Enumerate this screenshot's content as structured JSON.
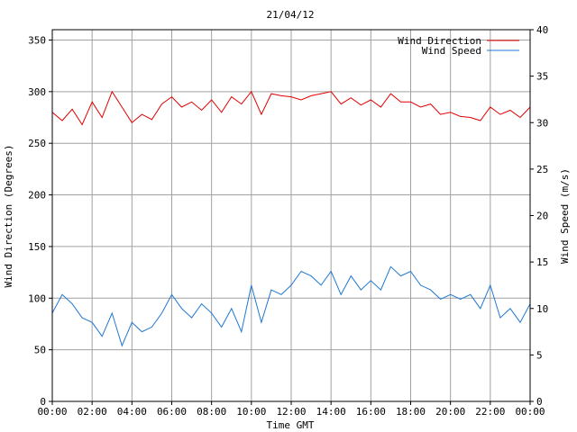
{
  "chart_data": {
    "type": "line",
    "title": "21/04/12",
    "xlabel": "Time GMT",
    "ylabel_left": "Wind Direction (Degrees)",
    "ylabel_right": "Wind Speed (m/s)",
    "x_ticks": [
      "00:00",
      "02:00",
      "04:00",
      "06:00",
      "08:00",
      "10:00",
      "12:00",
      "14:00",
      "16:00",
      "18:00",
      "20:00",
      "22:00",
      "00:00"
    ],
    "x_range_hours": [
      0,
      24
    ],
    "y_left": {
      "range": [
        0,
        360
      ],
      "ticks": [
        "0",
        "50",
        "100",
        "150",
        "200",
        "250",
        "300",
        "350"
      ],
      "tick_values": [
        0,
        50,
        100,
        150,
        200,
        250,
        300,
        350
      ]
    },
    "y_right": {
      "range": [
        0,
        40
      ],
      "ticks": [
        "0",
        "5",
        "10",
        "15",
        "20",
        "25",
        "30",
        "35",
        "40"
      ],
      "tick_values": [
        0,
        5,
        10,
        15,
        20,
        25,
        30,
        35,
        40
      ]
    },
    "grid": true,
    "legend_position": "top-right",
    "series": [
      {
        "name": "Wind Direction",
        "axis": "left",
        "color": "#e00000",
        "x": [
          0,
          0.5,
          1,
          1.5,
          2,
          2.5,
          3,
          3.5,
          4,
          4.5,
          5,
          5.5,
          6,
          6.5,
          7,
          7.5,
          8,
          8.5,
          9,
          9.5,
          10,
          10.5,
          11,
          11.5,
          12,
          12.5,
          13,
          13.5,
          14,
          14.5,
          15,
          15.5,
          16,
          16.5,
          17,
          17.5,
          18,
          18.5,
          19,
          19.5,
          20,
          20.5,
          21,
          21.5,
          22,
          22.5,
          23,
          23.5,
          24
        ],
        "values": [
          280,
          272,
          283,
          268,
          290,
          275,
          300,
          285,
          270,
          278,
          273,
          288,
          295,
          285,
          290,
          282,
          292,
          280,
          295,
          288,
          300,
          278,
          298,
          296,
          295,
          292,
          296,
          298,
          300,
          288,
          294,
          287,
          292,
          285,
          298,
          290,
          290,
          285,
          288,
          278,
          280,
          276,
          275,
          272,
          285,
          278,
          282,
          275,
          285
        ]
      },
      {
        "name": "Wind Speed",
        "axis": "right",
        "color": "#1f78d1",
        "x": [
          0,
          0.5,
          1,
          1.5,
          2,
          2.5,
          3,
          3.5,
          4,
          4.5,
          5,
          5.5,
          6,
          6.5,
          7,
          7.5,
          8,
          8.5,
          9,
          9.5,
          10,
          10.5,
          11,
          11.5,
          12,
          12.5,
          13,
          13.5,
          14,
          14.5,
          15,
          15.5,
          16,
          16.5,
          17,
          17.5,
          18,
          18.5,
          19,
          19.5,
          20,
          20.5,
          21,
          21.5,
          22,
          22.5,
          23,
          23.5,
          24
        ],
        "values": [
          9.5,
          11.5,
          10.5,
          9,
          8.5,
          7,
          9.5,
          6,
          8.5,
          7.5,
          8,
          9.5,
          11.5,
          10,
          9,
          10.5,
          9.5,
          8,
          10,
          7.5,
          12.5,
          8.5,
          12,
          11.5,
          12.5,
          14,
          13.5,
          12.5,
          14,
          11.5,
          13.5,
          12,
          13,
          12,
          14.5,
          13.5,
          14,
          12.5,
          12,
          11,
          11.5,
          11,
          11.5,
          10,
          12.5,
          9,
          10,
          8.5,
          10.5
        ]
      }
    ]
  }
}
